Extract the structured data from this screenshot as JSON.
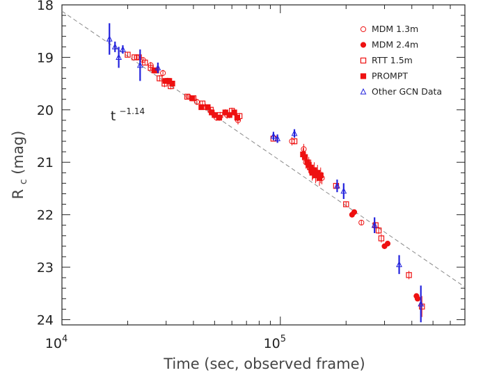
{
  "chart_data": {
    "type": "scatter",
    "x_scale": "log",
    "y_scale": "linear",
    "y_inverted": true,
    "xlim": [
      10000,
      700000
    ],
    "ylim": [
      18,
      24.1
    ],
    "xlabel": "Time  (sec, observed frame)",
    "ylabel_main": "R",
    "ylabel_sub": "c",
    "ylabel_unit": " (mag)",
    "x_tick_labels": [
      {
        "value": 10000,
        "base": "10",
        "exp": "4"
      },
      {
        "value": 100000,
        "base": "10",
        "exp": "5"
      }
    ],
    "y_ticks": [
      "18",
      "19",
      "20",
      "21",
      "22",
      "23",
      "24"
    ],
    "annotation": {
      "base": "t",
      "exp": "−1.14",
      "x": 18500,
      "y": 20.2
    },
    "fit_line": {
      "label": "t^-1.14",
      "index": -1.14,
      "anchor_x": 10000,
      "anchor_y": 18.12,
      "color": "#888888"
    },
    "legend": {
      "placement": "top-right",
      "entries": [
        {
          "label": "MDM 1.3m",
          "marker": "circle-open",
          "color": "#ee1111"
        },
        {
          "label": "MDM 2.4m",
          "marker": "circle-filled",
          "color": "#ee1111"
        },
        {
          "label": "RTT 1.5m",
          "marker": "square-open",
          "color": "#ee1111"
        },
        {
          "label": "PROMPT",
          "marker": "square-filled",
          "color": "#ee1111"
        },
        {
          "label": "Other GCN Data",
          "marker": "triangle-open",
          "color": "#2222dd"
        }
      ]
    },
    "series": [
      {
        "name": "MDM 1.3m",
        "marker": "circle-open",
        "color": "#ee1111",
        "points": [
          [
            22000,
            19.0,
            0.05
          ],
          [
            23500,
            19.05,
            0.05
          ],
          [
            25500,
            19.15,
            0.06
          ],
          [
            29000,
            19.3,
            0.06
          ],
          [
            38000,
            19.75,
            0.05
          ],
          [
            41500,
            19.85,
            0.06
          ],
          [
            45500,
            19.95,
            0.06
          ],
          [
            51000,
            20.15,
            0.06
          ],
          [
            57000,
            20.1,
            0.07
          ],
          [
            64000,
            20.2,
            0.08
          ],
          [
            113000,
            20.6,
            0.08
          ],
          [
            128000,
            20.75,
            0.1
          ],
          [
            131000,
            21.0,
            0.12
          ],
          [
            136000,
            21.1,
            0.12
          ],
          [
            141000,
            21.2,
            0.12
          ],
          [
            147000,
            21.25,
            0.12
          ],
          [
            155000,
            21.3,
            0.12
          ],
          [
            235000,
            22.15,
            0.05
          ]
        ]
      },
      {
        "name": "MDM 2.4m",
        "marker": "circle-filled",
        "color": "#ee1111",
        "points": [
          [
            213000,
            22.0,
            0.04
          ],
          [
            218000,
            21.95,
            0.04
          ],
          [
            300000,
            22.6,
            0.05
          ],
          [
            310000,
            22.55,
            0.05
          ],
          [
            420000,
            23.55,
            0.05
          ],
          [
            425000,
            23.6,
            0.05
          ]
        ]
      },
      {
        "name": "RTT 1.5m",
        "marker": "square-open",
        "color": "#ee1111",
        "points": [
          [
            20000,
            18.95,
            0.04
          ],
          [
            21500,
            19.0,
            0.04
          ],
          [
            22500,
            19.0,
            0.04
          ],
          [
            24000,
            19.1,
            0.04
          ],
          [
            25500,
            19.2,
            0.05
          ],
          [
            27000,
            19.25,
            0.05
          ],
          [
            28000,
            19.4,
            0.06
          ],
          [
            29500,
            19.5,
            0.07
          ],
          [
            30500,
            19.45,
            0.06
          ],
          [
            31500,
            19.55,
            0.06
          ],
          [
            37500,
            19.75,
            0.04
          ],
          [
            40000,
            19.78,
            0.05
          ],
          [
            44000,
            19.88,
            0.05
          ],
          [
            48000,
            20.0,
            0.05
          ],
          [
            53000,
            20.1,
            0.06
          ],
          [
            60000,
            20.02,
            0.06
          ],
          [
            65000,
            20.12,
            0.06
          ],
          [
            93000,
            20.55,
            0.05
          ],
          [
            116000,
            20.6,
            0.06
          ],
          [
            139000,
            21.15,
            0.08
          ],
          [
            180000,
            21.45,
            0.05
          ],
          [
            200000,
            21.8,
            0.05
          ],
          [
            273000,
            22.2,
            0.06
          ],
          [
            282000,
            22.3,
            0.07
          ],
          [
            290000,
            22.45,
            0.08
          ],
          [
            388000,
            23.15,
            0.08
          ],
          [
            445000,
            23.75,
            0.2
          ]
        ]
      },
      {
        "name": "PROMPT",
        "marker": "square-filled",
        "color": "#ee1111",
        "points": [
          [
            26500,
            19.25,
            0.05
          ],
          [
            29800,
            19.45,
            0.05
          ],
          [
            31000,
            19.45,
            0.05
          ],
          [
            32000,
            19.5,
            0.05
          ],
          [
            39500,
            19.78,
            0.05
          ],
          [
            43500,
            19.95,
            0.05
          ],
          [
            46500,
            19.95,
            0.05
          ],
          [
            48500,
            20.05,
            0.06
          ],
          [
            50000,
            20.1,
            0.06
          ],
          [
            52500,
            20.15,
            0.06
          ],
          [
            56000,
            20.05,
            0.06
          ],
          [
            58500,
            20.1,
            0.06
          ],
          [
            61500,
            20.05,
            0.06
          ],
          [
            63500,
            20.15,
            0.07
          ],
          [
            127000,
            20.85,
            0.12
          ],
          [
            129500,
            20.9,
            0.12
          ],
          [
            133000,
            21.0,
            0.15
          ],
          [
            135000,
            21.05,
            0.15
          ],
          [
            138000,
            21.1,
            0.15
          ],
          [
            140000,
            21.2,
            0.15
          ],
          [
            143000,
            21.15,
            0.15
          ],
          [
            145000,
            21.25,
            0.15
          ],
          [
            148000,
            21.2,
            0.15
          ],
          [
            151000,
            21.3,
            0.15
          ],
          [
            153000,
            21.25,
            0.15
          ]
        ]
      },
      {
        "name": "Other GCN Data",
        "marker": "triangle-open",
        "color": "#2222dd",
        "points": [
          [
            16500,
            18.65,
            0.3
          ],
          [
            17500,
            18.8,
            0.1
          ],
          [
            18200,
            19.0,
            0.2
          ],
          [
            19000,
            18.85,
            0.08
          ],
          [
            22800,
            19.15,
            0.3
          ],
          [
            27500,
            19.2,
            0.1
          ],
          [
            93000,
            20.5,
            0.08
          ],
          [
            97000,
            20.55,
            0.08
          ],
          [
            116000,
            20.45,
            0.08
          ],
          [
            182000,
            21.45,
            0.12
          ],
          [
            195000,
            21.55,
            0.15
          ],
          [
            270000,
            22.2,
            0.15
          ],
          [
            350000,
            22.95,
            0.18
          ],
          [
            440000,
            23.7,
            0.35
          ]
        ]
      }
    ]
  }
}
